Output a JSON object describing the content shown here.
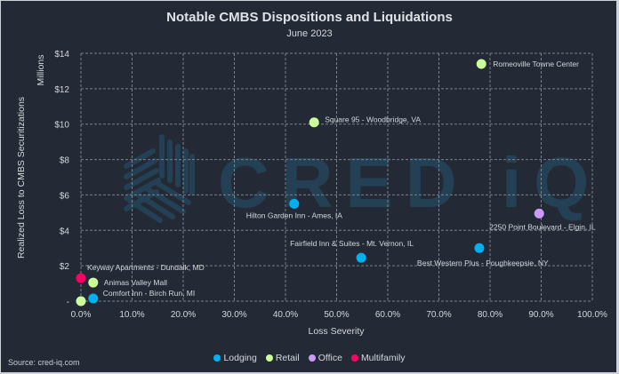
{
  "chart_data": {
    "type": "scatter",
    "title": "Notable CMBS Dispositions and Liquidations",
    "subtitle": "June 2023",
    "xlabel": "Loss Severity",
    "ylabel": "Realized Loss to CMBS Securitizations",
    "ylabel_units": "Millions",
    "xlim": [
      0,
      1.0
    ],
    "ylim": [
      0,
      14
    ],
    "x_ticks": [
      0,
      0.1,
      0.2,
      0.3,
      0.4,
      0.5,
      0.6,
      0.7,
      0.8,
      0.9,
      1.0
    ],
    "x_tick_labels": [
      "0.0%",
      "10.0%",
      "20.0%",
      "30.0%",
      "40.0%",
      "50.0%",
      "60.0%",
      "70.0%",
      "80.0%",
      "90.0%",
      "100.0%"
    ],
    "y_ticks": [
      0,
      2,
      4,
      6,
      8,
      10,
      12,
      14
    ],
    "y_tick_labels": [
      "-",
      "$2",
      "$4",
      "$6",
      "$8",
      "$10",
      "$12",
      "$14"
    ],
    "grid": true,
    "legend_position": "bottom",
    "series": [
      {
        "name": "Lodging",
        "color": "#00b0f0",
        "points": [
          {
            "label": "Hilton Garden Inn - Ames, IA",
            "x": 0.417,
            "y": 5.5
          },
          {
            "label": "Fairfield Inn & Suites - Mt. Vernon, IL",
            "x": 0.548,
            "y": 2.45
          },
          {
            "label": "Best Western Plus - Poughkeepsie, NY",
            "x": 0.779,
            "y": 3.0
          },
          {
            "label": "Comfort Inn - Birch Run, MI",
            "x": 0.024,
            "y": 0.15
          }
        ]
      },
      {
        "name": "Retail",
        "color": "#ccff99",
        "points": [
          {
            "label": "Romeoville Towne Center",
            "x": 0.783,
            "y": 13.4
          },
          {
            "label": "Square 95 - Woodbridge, VA",
            "x": 0.456,
            "y": 10.1
          },
          {
            "label": "Animas Valley Mall",
            "x": 0.024,
            "y": 1.05
          },
          {
            "label": "",
            "x": 0.0,
            "y": 0.0
          }
        ]
      },
      {
        "name": "Office",
        "color": "#cc99ff",
        "points": [
          {
            "label": "2250 Point Boulevard - Elgin, IL",
            "x": 0.896,
            "y": 4.95
          }
        ]
      },
      {
        "name": "Multifamily",
        "color": "#ff0066",
        "points": [
          {
            "label": "Keyway Apartments - Dundalk, MD",
            "x": 0.0,
            "y": 1.3
          }
        ]
      }
    ],
    "watermark": "CRED iQ"
  },
  "footer": {
    "source": "Source: cred-iq.com"
  }
}
